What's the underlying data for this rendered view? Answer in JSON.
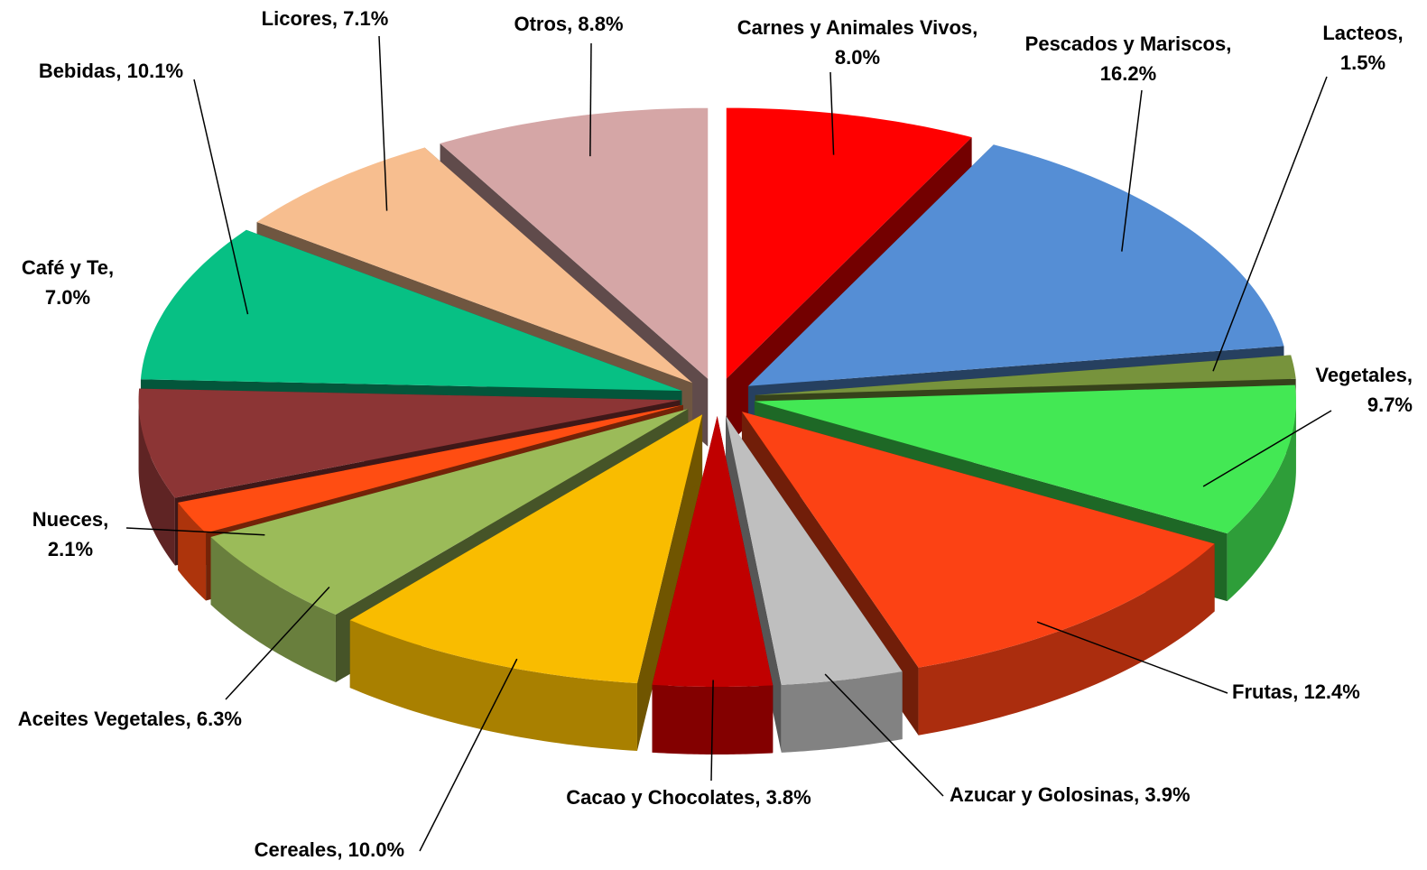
{
  "chart_data": {
    "type": "pie3d",
    "values": [
      8.0,
      16.2,
      1.5,
      9.7,
      12.4,
      3.9,
      3.8,
      10.0,
      6.3,
      2.1,
      7.0,
      10.1,
      7.1,
      8.8
    ],
    "value_labels": [
      "Carnes y Animales Vivos, 8.0%",
      "Pescados y Mariscos, 16.2%",
      "Lacteos, 1.5%",
      "Vegetales, 9.7%",
      "Frutas, 12.4%",
      "Azucar y Golosinas, 3.9%",
      "Cacao y Chocolates,  3.8%",
      "Cereales, 10.0%",
      "Aceites Vegetales, 6.3%",
      "Nueces, 2.1%",
      "Café y Te, 7.0%",
      "Bebidas, 10.1%",
      "Licores, 7.1%",
      "Otros, 8.8%"
    ],
    "colors": [
      "#ff0000",
      "#558ed5",
      "#77933c",
      "#43e854",
      "#fc4214",
      "#bfbfbf",
      "#c00000",
      "#f9bc00",
      "#9bbb59",
      "#ff4d12",
      "#8c3535",
      "#07c084",
      "#f7be8f",
      "#d5a6a6"
    ]
  }
}
